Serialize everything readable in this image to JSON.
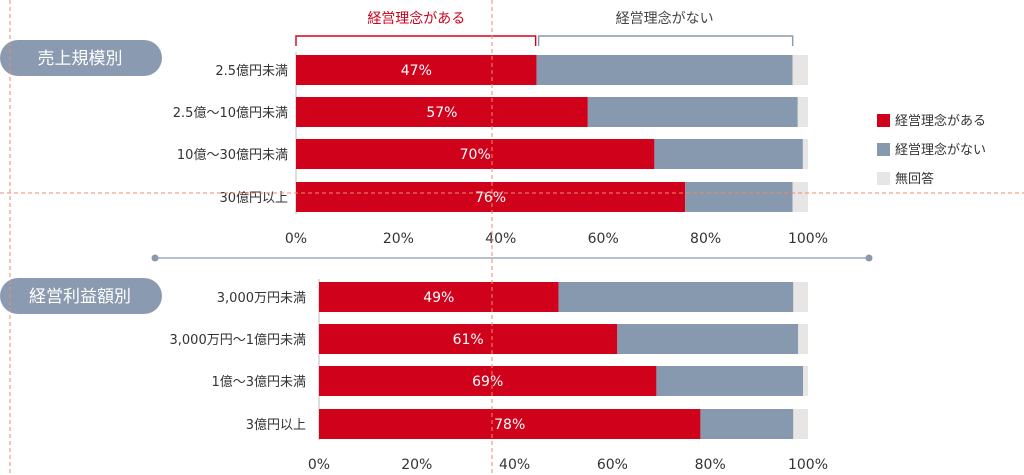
{
  "chart_data": [
    {
      "type": "bar",
      "orientation": "horizontal",
      "stacked": true,
      "group_label": "売上規模別",
      "categories": [
        "2.5億円未満",
        "2.5億〜10億円未満",
        "10億〜30億円未満",
        "30億円以上"
      ],
      "series": [
        {
          "name": "経営理念がある",
          "values": [
            47,
            57,
            70,
            76
          ],
          "labels": [
            "47%",
            "57%",
            "70%",
            "76%"
          ]
        },
        {
          "name": "経営理念がない",
          "values": [
            50,
            41,
            29,
            21
          ]
        },
        {
          "name": "無回答",
          "values": [
            3,
            2,
            1,
            3
          ]
        }
      ],
      "xlim": [
        0,
        100
      ],
      "xticks": [
        "0%",
        "20%",
        "40%",
        "60%",
        "80%",
        "100%"
      ]
    },
    {
      "type": "bar",
      "orientation": "horizontal",
      "stacked": true,
      "group_label": "経営利益額別",
      "categories": [
        "3,000万円未満",
        "3,000万円〜1億円未満",
        "1億〜3億円未満",
        "3億円以上"
      ],
      "series": [
        {
          "name": "経営理念がある",
          "values": [
            49,
            61,
            69,
            78
          ],
          "labels": [
            "49%",
            "61%",
            "69%",
            "78%"
          ]
        },
        {
          "name": "経営理念がない",
          "values": [
            48,
            37,
            30,
            19
          ]
        },
        {
          "name": "無回答",
          "values": [
            3,
            2,
            1,
            3
          ]
        }
      ],
      "xlim": [
        0,
        100
      ],
      "xticks": [
        "0%",
        "20%",
        "40%",
        "60%",
        "80%",
        "100%"
      ]
    }
  ],
  "bracket": {
    "has_label": "経営理念がある",
    "not_label": "経営理念がない",
    "has_value": 47,
    "not_end_value": 97
  },
  "legend": [
    {
      "label": "経営理念がある",
      "color": "#d0021b"
    },
    {
      "label": "経営理念がない",
      "color": "#8799ae"
    },
    {
      "label": "無回答",
      "color": "#e8e6e4"
    }
  ],
  "colors": {
    "has": "#d0021b",
    "not": "#8799ae",
    "none": "#e8e6e4",
    "pill": "#8a9ab0",
    "guide": "#f08a6e",
    "separator": "#8a9ab0"
  }
}
